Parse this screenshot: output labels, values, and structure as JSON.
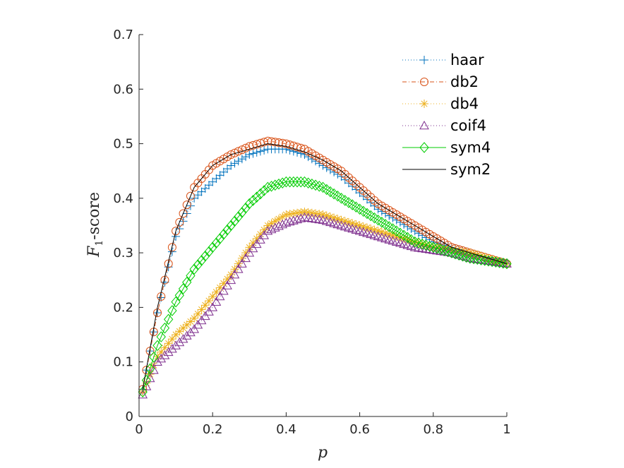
{
  "chart_data": {
    "type": "line",
    "xlabel": "p",
    "ylabel_main": "F",
    "ylabel_sub": "1",
    "ylabel_rest": "-score",
    "xlim": [
      0,
      1
    ],
    "ylim": [
      0,
      0.7
    ],
    "xticks": [
      0,
      0.2,
      0.4,
      0.6,
      0.8,
      1
    ],
    "xtick_labels": [
      "0",
      "0.2",
      "0.4",
      "0.6",
      "0.8",
      "1"
    ],
    "yticks": [
      0,
      0.1,
      0.2,
      0.3,
      0.4,
      0.5,
      0.6,
      0.7
    ],
    "ytick_labels": [
      "0",
      "0.1",
      "0.2",
      "0.3",
      "0.4",
      "0.5",
      "0.6",
      "0.7"
    ],
    "grid": false,
    "legend_position": "top-right",
    "x": [
      0.01,
      0.05,
      0.1,
      0.15,
      0.2,
      0.25,
      0.3,
      0.35,
      0.4,
      0.45,
      0.5,
      0.55,
      0.6,
      0.65,
      0.7,
      0.75,
      0.8,
      0.85,
      0.9,
      0.95,
      1.0
    ],
    "series": [
      {
        "name": "haar",
        "color": "#0072BD",
        "dash": "1,3",
        "marker": "plus",
        "values": [
          0.05,
          0.19,
          0.33,
          0.4,
          0.43,
          0.46,
          0.48,
          0.49,
          0.49,
          0.48,
          0.46,
          0.44,
          0.41,
          0.38,
          0.36,
          0.34,
          0.32,
          0.31,
          0.3,
          0.29,
          0.28
        ]
      },
      {
        "name": "db2",
        "color": "#D95319",
        "dash": "6,3,1,3",
        "marker": "circle",
        "values": [
          0.05,
          0.19,
          0.34,
          0.42,
          0.46,
          0.48,
          0.495,
          0.505,
          0.5,
          0.49,
          0.47,
          0.45,
          0.42,
          0.39,
          0.37,
          0.35,
          0.33,
          0.31,
          0.3,
          0.29,
          0.28
        ]
      },
      {
        "name": "db4",
        "color": "#EDB120",
        "dash": "1,3",
        "marker": "asterisk",
        "values": [
          0.045,
          0.11,
          0.15,
          0.18,
          0.22,
          0.26,
          0.31,
          0.35,
          0.37,
          0.375,
          0.37,
          0.36,
          0.35,
          0.34,
          0.33,
          0.32,
          0.31,
          0.305,
          0.3,
          0.29,
          0.28
        ]
      },
      {
        "name": "coif4",
        "color": "#7E2F8E",
        "dash": "1,3",
        "marker": "triangle",
        "values": [
          0.04,
          0.1,
          0.13,
          0.16,
          0.2,
          0.25,
          0.3,
          0.34,
          0.355,
          0.365,
          0.36,
          0.35,
          0.34,
          0.33,
          0.32,
          0.31,
          0.305,
          0.3,
          0.29,
          0.285,
          0.28
        ]
      },
      {
        "name": "sym4",
        "color": "#00CC00",
        "dash": "",
        "marker": "diamond",
        "values": [
          0.045,
          0.13,
          0.21,
          0.27,
          0.31,
          0.35,
          0.39,
          0.42,
          0.43,
          0.43,
          0.42,
          0.4,
          0.38,
          0.36,
          0.34,
          0.32,
          0.31,
          0.3,
          0.29,
          0.285,
          0.28
        ]
      },
      {
        "name": "sym2",
        "color": "#000000",
        "dash": "",
        "marker": "none",
        "values": [
          0.05,
          0.2,
          0.34,
          0.42,
          0.46,
          0.48,
          0.49,
          0.5,
          0.495,
          0.485,
          0.47,
          0.45,
          0.42,
          0.39,
          0.37,
          0.35,
          0.33,
          0.31,
          0.3,
          0.29,
          0.28
        ]
      }
    ]
  }
}
